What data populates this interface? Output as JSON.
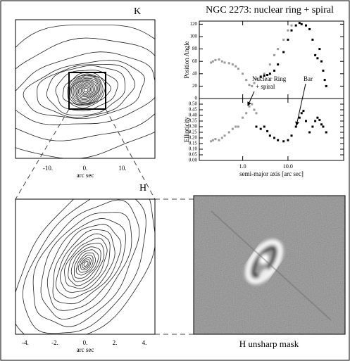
{
  "title": "NGC 2273: nuclear ring + spiral",
  "k_panel": {
    "label": "K",
    "tick_labels": [
      "-10.",
      "0.",
      "10."
    ],
    "axis_label": "arc sec"
  },
  "h_panel": {
    "label": "H",
    "tick_labels": [
      "-4.",
      "-2.",
      "0.",
      "2.",
      "4."
    ],
    "axis_label": "arc sec"
  },
  "unsharp_panel": {
    "caption": "H unsharp mask"
  },
  "chart_data": [
    {
      "type": "scatter",
      "ylabel": "Position Angle",
      "xscale": "log",
      "xlim": [
        0.11,
        170
      ],
      "ylim": [
        0,
        125
      ],
      "yticks": [
        0,
        20,
        40,
        60,
        80,
        100,
        120
      ],
      "xticks": [
        1,
        10
      ],
      "series": [
        {
          "color": "#9a9a9a",
          "x": [
            0.2,
            0.22,
            0.25,
            0.3,
            0.35,
            0.4,
            0.5,
            0.6,
            0.7,
            0.8,
            1.0,
            1.2,
            1.4,
            1.6,
            1.8,
            2.0,
            2.5,
            3,
            4,
            5,
            6,
            8,
            10,
            12
          ],
          "values": [
            58,
            60,
            62,
            63,
            60,
            58,
            57,
            55,
            52,
            48,
            40,
            30,
            22,
            20,
            25,
            32,
            36,
            40,
            55,
            70,
            80,
            95,
            110,
            118
          ]
        },
        {
          "color": "#000000",
          "x": [
            2.5,
            3,
            3.5,
            4,
            5,
            6,
            8,
            10,
            12,
            15,
            18,
            20,
            25,
            30,
            35,
            40,
            45,
            50,
            55,
            60,
            65,
            70
          ],
          "values": [
            35,
            37,
            38,
            40,
            45,
            55,
            75,
            95,
            110,
            118,
            122,
            120,
            118,
            112,
            95,
            70,
            65,
            80,
            60,
            45,
            30,
            20
          ]
        }
      ]
    },
    {
      "type": "scatter",
      "ylabel": "Ellipticity",
      "xlabel": "semi-major axis [arc sec]",
      "xscale": "log",
      "xlim": [
        0.11,
        170
      ],
      "ylim": [
        0,
        0.55
      ],
      "yticks": [
        {
          "value": 0,
          "label": "0.00"
        },
        {
          "value": 0.05,
          "label": "0.05"
        },
        {
          "value": 0.1,
          "label": "0.10"
        },
        {
          "value": 0.15,
          "label": "0.15"
        },
        {
          "value": 0.2,
          "label": "0.20"
        },
        {
          "value": 0.25,
          "label": "0.25"
        },
        {
          "value": 0.3,
          "label": "0.30"
        },
        {
          "value": 0.35,
          "label": "0.35"
        },
        {
          "value": 0.4,
          "label": "0.40"
        },
        {
          "value": 0.45,
          "label": "0.45"
        },
        {
          "value": 0.5,
          "label": "0.50"
        }
      ],
      "xticks": [
        {
          "value": 1,
          "label": "1.0"
        },
        {
          "value": 10,
          "label": "10.0"
        }
      ],
      "annotations": [
        {
          "lines": [
            "Nuclear Ring",
            "+ spiral"
          ]
        },
        {
          "lines": [
            "Bar"
          ]
        }
      ],
      "series": [
        {
          "color": "#9a9a9a",
          "x": [
            0.2,
            0.22,
            0.25,
            0.3,
            0.35,
            0.4,
            0.5,
            0.6,
            0.7,
            0.8,
            1.0,
            1.2,
            1.4,
            1.6,
            1.8,
            2.0
          ],
          "values": [
            0.17,
            0.18,
            0.19,
            0.18,
            0.2,
            0.22,
            0.25,
            0.28,
            0.3,
            0.3,
            0.38,
            0.42,
            0.48,
            0.5,
            0.45,
            0.42
          ]
        },
        {
          "color": "#000000",
          "x": [
            2,
            2.5,
            3,
            3.5,
            4,
            5,
            6,
            8,
            10,
            12,
            15,
            18,
            20,
            22,
            25,
            30,
            35,
            40,
            45,
            50,
            55,
            60,
            70
          ],
          "values": [
            0.3,
            0.28,
            0.3,
            0.26,
            0.22,
            0.2,
            0.18,
            0.17,
            0.18,
            0.22,
            0.3,
            0.38,
            0.42,
            0.44,
            0.35,
            0.25,
            0.3,
            0.35,
            0.38,
            0.36,
            0.32,
            0.3,
            0.25
          ]
        }
      ]
    }
  ]
}
